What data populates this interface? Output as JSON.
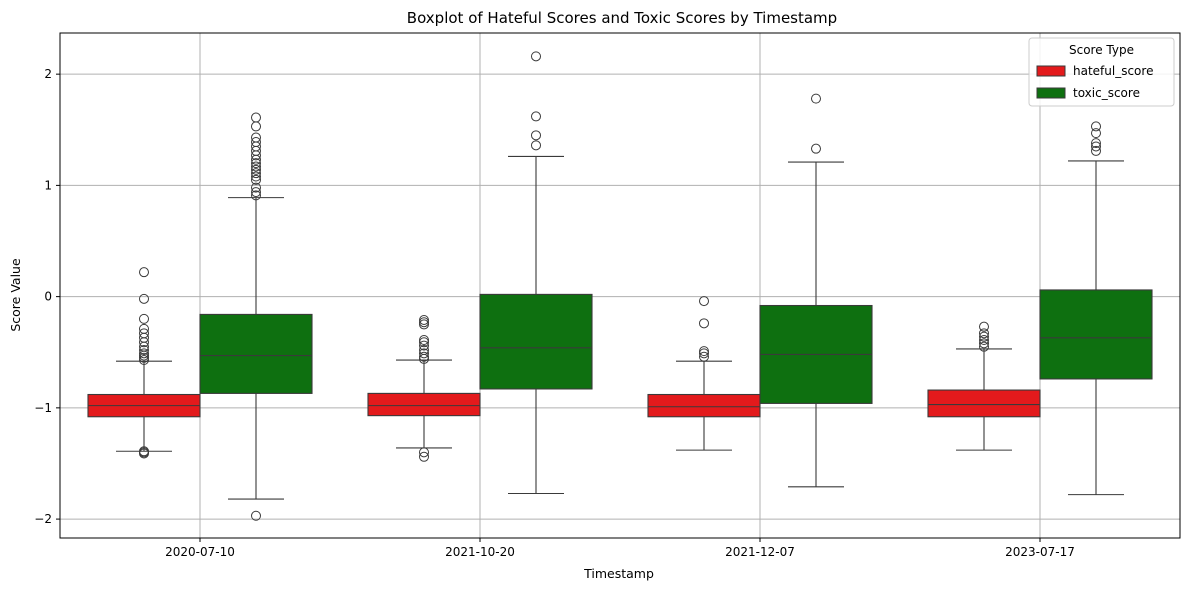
{
  "chart_data": {
    "type": "boxplot",
    "title": "Boxplot of Hateful Scores and Toxic Scores by Timestamp",
    "xlabel": "Timestamp",
    "ylabel": "Score Value",
    "ylim": [
      -2.17,
      2.37
    ],
    "yticks": [
      -2,
      -1,
      0,
      1,
      2
    ],
    "yticklabels": [
      "−2",
      "−1",
      "0",
      "1",
      "2"
    ],
    "grid": true,
    "legend": {
      "title": "Score Type",
      "position": "top-right"
    },
    "categories": [
      "2020-07-10",
      "2021-10-20",
      "2021-12-07",
      "2023-07-17"
    ],
    "series": [
      {
        "name": "hateful_score",
        "color": "#e31a1c",
        "boxes": [
          {
            "whislo": -1.39,
            "q1": -1.08,
            "med": -0.98,
            "q3": -0.88,
            "whishi": -0.58,
            "fliers": [
              0.22,
              -0.02,
              -0.2,
              -0.29,
              -0.33,
              -0.37,
              -0.41,
              -0.45,
              -0.48,
              -0.51,
              -0.53,
              -0.55,
              -0.57,
              -1.39,
              -1.4,
              -1.41
            ]
          },
          {
            "whislo": -1.36,
            "q1": -1.07,
            "med": -0.98,
            "q3": -0.87,
            "whishi": -0.57,
            "fliers": [
              -0.21,
              -0.23,
              -0.25,
              -0.39,
              -0.41,
              -0.44,
              -0.48,
              -0.51,
              -0.54,
              -0.56,
              -1.4,
              -1.44
            ]
          },
          {
            "whislo": -1.38,
            "q1": -1.08,
            "med": -0.99,
            "q3": -0.88,
            "whishi": -0.58,
            "fliers": [
              -0.04,
              -0.24,
              -0.49,
              -0.51,
              -0.54
            ]
          },
          {
            "whislo": -1.38,
            "q1": -1.08,
            "med": -0.97,
            "q3": -0.84,
            "whishi": -0.47,
            "fliers": [
              -0.27,
              -0.33,
              -0.36,
              -0.39,
              -0.42,
              -0.45
            ]
          }
        ]
      },
      {
        "name": "toxic_score",
        "color": "#0e7010",
        "boxes": [
          {
            "whislo": -1.82,
            "q1": -0.87,
            "med": -0.53,
            "q3": -0.16,
            "whishi": 0.89,
            "fliers": [
              1.61,
              1.53,
              1.43,
              1.39,
              1.35,
              1.31,
              1.27,
              1.23,
              1.2,
              1.17,
              1.14,
              1.11,
              1.08,
              1.05,
              0.98,
              0.94,
              0.91,
              -1.97
            ]
          },
          {
            "whislo": -1.77,
            "q1": -0.83,
            "med": -0.46,
            "q3": 0.02,
            "whishi": 1.26,
            "fliers": [
              2.16,
              1.62,
              1.45,
              1.36
            ]
          },
          {
            "whislo": -1.71,
            "q1": -0.96,
            "med": -0.52,
            "q3": -0.08,
            "whishi": 1.21,
            "fliers": [
              1.78,
              1.33
            ]
          },
          {
            "whislo": -1.78,
            "q1": -0.74,
            "med": -0.37,
            "q3": 0.06,
            "whishi": 1.22,
            "fliers": [
              1.53,
              1.47,
              1.38,
              1.35,
              1.31
            ]
          }
        ]
      }
    ]
  }
}
